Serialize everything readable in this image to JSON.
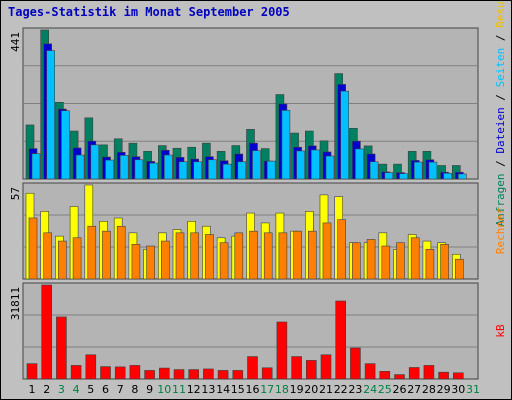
{
  "title": "Tages-Statistik im Monat September 2005",
  "chart_data": [
    {
      "type": "bar",
      "panel": "top",
      "ymax_label": "441",
      "ylim": [
        0,
        441
      ],
      "categories": [
        "1",
        "2",
        "3",
        "4",
        "5",
        "6",
        "7",
        "8",
        "9",
        "10",
        "11",
        "12",
        "13",
        "14",
        "15",
        "16",
        "17",
        "18",
        "19",
        "20",
        "21",
        "22",
        "23",
        "24",
        "25",
        "26",
        "27",
        "28",
        "29",
        "30",
        "31"
      ],
      "series": [
        {
          "name": "Anfragen",
          "color": "#008060",
          "values": [
            160,
            441,
            227,
            142,
            181,
            101,
            119,
            106,
            82,
            99,
            91,
            94,
            106,
            82,
            99,
            147,
            90,
            250,
            136,
            142,
            113,
            312,
            150,
            98,
            44,
            44,
            82,
            82,
            40,
            40,
            0
          ]
        },
        {
          "name": "Dateien",
          "color": "#0000d0",
          "values": [
            90,
            400,
            207,
            92,
            112,
            65,
            79,
            66,
            52,
            85,
            64,
            59,
            66,
            54,
            74,
            106,
            53,
            222,
            94,
            98,
            80,
            280,
            112,
            74,
            21,
            19,
            55,
            57,
            20,
            20,
            0
          ]
        },
        {
          "name": "Seiten",
          "color": "#00c0ff",
          "values": [
            75,
            380,
            202,
            71,
            101,
            56,
            70,
            57,
            47,
            71,
            51,
            51,
            57,
            44,
            51,
            84,
            53,
            203,
            83,
            86,
            68,
            260,
            89,
            51,
            19,
            16,
            50,
            50,
            17,
            15,
            0
          ]
        }
      ],
      "legend": [
        "Anfragen",
        "/",
        "Dateien",
        "/",
        "Seiten",
        "/",
        "Besuche"
      ],
      "legend_colors": [
        "#008060",
        "#000000",
        "#0000d0",
        "#000000",
        "#00c0ff",
        "#000000",
        "#f0c000"
      ]
    },
    {
      "type": "bar",
      "panel": "middle",
      "ymax_label": "57",
      "ylim": [
        0,
        57
      ],
      "categories": [
        "1",
        "2",
        "3",
        "4",
        "5",
        "6",
        "7",
        "8",
        "9",
        "10",
        "11",
        "12",
        "13",
        "14",
        "15",
        "16",
        "17",
        "18",
        "19",
        "20",
        "21",
        "22",
        "23",
        "24",
        "25",
        "26",
        "27",
        "28",
        "29",
        "30",
        "31"
      ],
      "series": [
        {
          "name": "Besuche",
          "color": "#ffff00",
          "values": [
            52,
            41,
            26,
            44,
            57,
            35,
            37,
            28,
            18,
            28,
            30,
            35,
            32,
            25,
            26,
            40,
            34,
            40,
            29,
            41,
            51,
            50,
            22,
            22,
            28,
            18,
            27,
            23,
            22,
            15,
            0
          ]
        },
        {
          "name": "Rechner",
          "color": "#ff8000",
          "values": [
            37,
            28,
            23,
            25,
            32,
            29,
            32,
            21,
            20,
            23,
            28,
            28,
            27,
            22,
            28,
            29,
            28,
            28,
            29,
            29,
            34,
            36,
            22,
            24,
            20,
            22,
            25,
            18,
            21,
            12,
            0
          ]
        }
      ],
      "legend": [
        "Rechner"
      ],
      "legend_colors": [
        "#ff8000"
      ]
    },
    {
      "type": "bar",
      "panel": "bottom",
      "ymax_label": "31811",
      "ylim": [
        0,
        31811
      ],
      "categories": [
        "1",
        "2",
        "3",
        "4",
        "5",
        "6",
        "7",
        "8",
        "9",
        "10",
        "11",
        "12",
        "13",
        "14",
        "15",
        "16",
        "17",
        "18",
        "19",
        "20",
        "21",
        "22",
        "23",
        "24",
        "25",
        "26",
        "27",
        "28",
        "29",
        "30",
        "31"
      ],
      "series": [
        {
          "name": "kB",
          "color": "#ff0000",
          "values": [
            5200,
            31811,
            21000,
            4600,
            8200,
            4200,
            4100,
            4600,
            2900,
            3700,
            3200,
            3200,
            3400,
            2900,
            2900,
            7600,
            3800,
            19300,
            7600,
            6300,
            8200,
            26400,
            10500,
            5200,
            2600,
            1500,
            3900,
            4600,
            2300,
            2100,
            0
          ]
        }
      ],
      "legend": [
        "kB"
      ],
      "legend_colors": [
        "#ff0000"
      ]
    }
  ],
  "xaxis": {
    "labels": [
      "1",
      "2",
      "3",
      "4",
      "5",
      "6",
      "7",
      "8",
      "9",
      "10",
      "11",
      "12",
      "13",
      "14",
      "15",
      "16",
      "17",
      "18",
      "19",
      "20",
      "21",
      "22",
      "23",
      "24",
      "25",
      "26",
      "27",
      "28",
      "29",
      "30",
      "31"
    ],
    "weekend": [
      3,
      4,
      10,
      11,
      17,
      18,
      24,
      25,
      31
    ],
    "weekday_color": "#000000",
    "weekend_color": "#008040"
  }
}
